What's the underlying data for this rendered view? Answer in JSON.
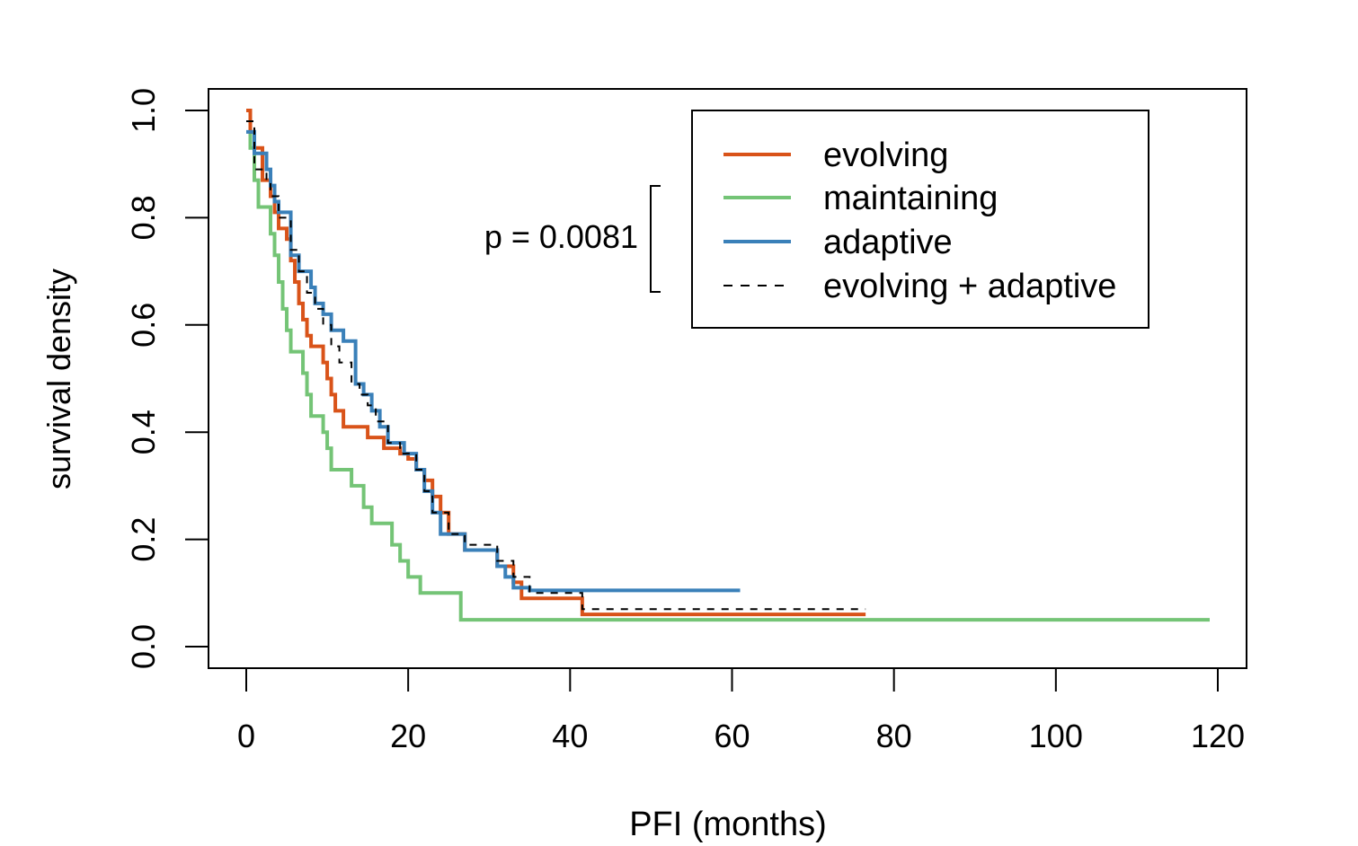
{
  "chart_data": {
    "type": "line",
    "subtype": "kaplan-meier step",
    "xlabel": "PFI (months)",
    "ylabel": "survival density",
    "xlim": [
      0,
      120
    ],
    "ylim": [
      0,
      1
    ],
    "xticks": [
      0,
      20,
      40,
      60,
      80,
      100,
      120
    ],
    "xtick_labels": [
      "0",
      "20",
      "40",
      "60",
      "80",
      "100",
      "120"
    ],
    "yticks": [
      0,
      0.2,
      0.4,
      0.6,
      0.8,
      1
    ],
    "ytick_labels": [
      "0.0",
      "0.2",
      "0.4",
      "0.6",
      "0.8",
      "1.0"
    ],
    "grid": false,
    "legend_position": "top-right",
    "annotation": "p = 0.0081",
    "series": [
      {
        "name": "evolving",
        "color": "#d95319",
        "dash": "solid",
        "points": [
          [
            0,
            1.0
          ],
          [
            0.5,
            0.96
          ],
          [
            1,
            0.93
          ],
          [
            2,
            0.87
          ],
          [
            3,
            0.84
          ],
          [
            3.5,
            0.81
          ],
          [
            4,
            0.78
          ],
          [
            5,
            0.76
          ],
          [
            5.5,
            0.72
          ],
          [
            6,
            0.68
          ],
          [
            6.5,
            0.64
          ],
          [
            7,
            0.61
          ],
          [
            7.5,
            0.58
          ],
          [
            8,
            0.56
          ],
          [
            9.5,
            0.53
          ],
          [
            10,
            0.5
          ],
          [
            10.5,
            0.47
          ],
          [
            11,
            0.44
          ],
          [
            12,
            0.41
          ],
          [
            15,
            0.39
          ],
          [
            17,
            0.37
          ],
          [
            19,
            0.36
          ],
          [
            20,
            0.35
          ],
          [
            21,
            0.33
          ],
          [
            22,
            0.31
          ],
          [
            23,
            0.28
          ],
          [
            24,
            0.25
          ],
          [
            25,
            0.21
          ],
          [
            27,
            0.18
          ],
          [
            31,
            0.15
          ],
          [
            33,
            0.12
          ],
          [
            34,
            0.09
          ],
          [
            41.5,
            0.06
          ],
          [
            76.5,
            0.06
          ]
        ]
      },
      {
        "name": "maintaining",
        "color": "#74c476",
        "dash": "solid",
        "points": [
          [
            0,
            1.0
          ],
          [
            0.5,
            0.93
          ],
          [
            1,
            0.87
          ],
          [
            1.5,
            0.82
          ],
          [
            3,
            0.77
          ],
          [
            3.5,
            0.73
          ],
          [
            4,
            0.68
          ],
          [
            4.5,
            0.63
          ],
          [
            5,
            0.59
          ],
          [
            5.5,
            0.55
          ],
          [
            7,
            0.51
          ],
          [
            7.5,
            0.47
          ],
          [
            8,
            0.43
          ],
          [
            9.5,
            0.4
          ],
          [
            10,
            0.37
          ],
          [
            10.5,
            0.33
          ],
          [
            13,
            0.3
          ],
          [
            14.5,
            0.26
          ],
          [
            15.5,
            0.23
          ],
          [
            18,
            0.19
          ],
          [
            19,
            0.16
          ],
          [
            20,
            0.13
          ],
          [
            21.5,
            0.1
          ],
          [
            26.5,
            0.05
          ],
          [
            119,
            0.05
          ]
        ]
      },
      {
        "name": "adaptive",
        "color": "#3a80b9",
        "dash": "solid",
        "points": [
          [
            0,
            0.96
          ],
          [
            1,
            0.92
          ],
          [
            2.5,
            0.89
          ],
          [
            3,
            0.86
          ],
          [
            3.5,
            0.83
          ],
          [
            4,
            0.81
          ],
          [
            5.5,
            0.73
          ],
          [
            6.5,
            0.7
          ],
          [
            8,
            0.67
          ],
          [
            8.5,
            0.64
          ],
          [
            9.5,
            0.62
          ],
          [
            10.5,
            0.59
          ],
          [
            12,
            0.57
          ],
          [
            13.5,
            0.49
          ],
          [
            14.5,
            0.47
          ],
          [
            15.5,
            0.44
          ],
          [
            16.5,
            0.41
          ],
          [
            17.5,
            0.38
          ],
          [
            19.5,
            0.36
          ],
          [
            21,
            0.33
          ],
          [
            22,
            0.29
          ],
          [
            23,
            0.25
          ],
          [
            24,
            0.21
          ],
          [
            27,
            0.18
          ],
          [
            31,
            0.15
          ],
          [
            32,
            0.13
          ],
          [
            33,
            0.11
          ],
          [
            35,
            0.105
          ],
          [
            61,
            0.105
          ]
        ]
      },
      {
        "name": "evolving + adaptive",
        "color": "#000000",
        "dash": "dashed",
        "points": [
          [
            0,
            0.98
          ],
          [
            1,
            0.89
          ],
          [
            2.5,
            0.87
          ],
          [
            3,
            0.84
          ],
          [
            4,
            0.8
          ],
          [
            5.5,
            0.74
          ],
          [
            6.5,
            0.7
          ],
          [
            7.5,
            0.66
          ],
          [
            8.5,
            0.63
          ],
          [
            9.5,
            0.6
          ],
          [
            10.5,
            0.56
          ],
          [
            11.5,
            0.53
          ],
          [
            13,
            0.49
          ],
          [
            14,
            0.47
          ],
          [
            15,
            0.45
          ],
          [
            16,
            0.42
          ],
          [
            17.5,
            0.38
          ],
          [
            19,
            0.36
          ],
          [
            21,
            0.33
          ],
          [
            22,
            0.29
          ],
          [
            23,
            0.25
          ],
          [
            25,
            0.21
          ],
          [
            27,
            0.19
          ],
          [
            31,
            0.16
          ],
          [
            33,
            0.13
          ],
          [
            35,
            0.1
          ],
          [
            41.5,
            0.07
          ],
          [
            76.5,
            0.07
          ]
        ]
      }
    ]
  }
}
